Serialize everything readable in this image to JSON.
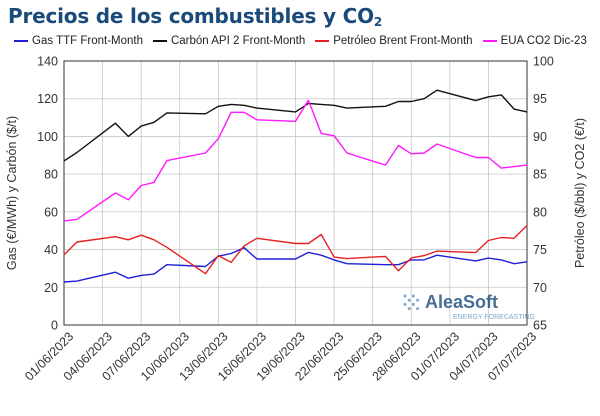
{
  "title": {
    "main": "Precios de los combustibles y CO",
    "sub": "2"
  },
  "chart_data": {
    "type": "line",
    "x_dates": [
      "2023-06-01",
      "2023-06-02",
      "2023-06-05",
      "2023-06-06",
      "2023-06-07",
      "2023-06-08",
      "2023-06-09",
      "2023-06-12",
      "2023-06-13",
      "2023-06-14",
      "2023-06-15",
      "2023-06-16",
      "2023-06-19",
      "2023-06-20",
      "2023-06-21",
      "2023-06-22",
      "2023-06-23",
      "2023-06-26",
      "2023-06-27",
      "2023-06-28",
      "2023-06-29",
      "2023-06-30",
      "2023-07-03",
      "2023-07-04",
      "2023-07-05",
      "2023-07-06",
      "2023-07-07"
    ],
    "x_tick_labels": [
      "01/06/2023",
      "04/06/2023",
      "07/06/2023",
      "10/06/2023",
      "13/06/2023",
      "16/06/2023",
      "19/06/2023",
      "22/06/2023",
      "25/06/2023",
      "28/06/2023",
      "01/07/2023",
      "04/07/2023",
      "07/07/2023"
    ],
    "x_tick_dates": [
      "2023-06-01",
      "2023-06-04",
      "2023-06-07",
      "2023-06-10",
      "2023-06-13",
      "2023-06-16",
      "2023-06-19",
      "2023-06-22",
      "2023-06-25",
      "2023-06-28",
      "2023-07-01",
      "2023-07-04",
      "2023-07-07"
    ],
    "y_left": {
      "label": "Gas (€/MWh) y Carbón ($/t)",
      "range": [
        0,
        140
      ],
      "ticks": [
        0,
        20,
        40,
        60,
        80,
        100,
        120,
        140
      ]
    },
    "y_right": {
      "label": "Petróleo ($/bbl) y CO2 (€/t)",
      "range": [
        65,
        100
      ],
      "ticks": [
        65,
        70,
        75,
        80,
        85,
        90,
        95,
        100
      ]
    },
    "grid": true,
    "legend_position": "top",
    "series": [
      {
        "name": "Gas TTF Front-Month",
        "axis": "left",
        "color": "#1f1fd6",
        "values": [
          22.8,
          23.3,
          28.0,
          24.8,
          26.3,
          27.0,
          32.0,
          31.0,
          36.5,
          37.9,
          41.0,
          35.0,
          35.0,
          38.5,
          37.0,
          34.5,
          32.5,
          32.0,
          32.0,
          34.5,
          34.5,
          37.0,
          34.0,
          35.5,
          34.5,
          32.5,
          33.5
        ]
      },
      {
        "name": "Carbón API 2 Front-Month",
        "axis": "left",
        "color": "#111111",
        "values": [
          87.0,
          91.5,
          107.0,
          100.0,
          105.5,
          107.5,
          112.5,
          112.0,
          116.0,
          117.0,
          116.5,
          115.0,
          113.0,
          117.5,
          117.0,
          116.5,
          115.0,
          116.0,
          118.5,
          118.5,
          120.0,
          124.5,
          119.0,
          121.0,
          122.0,
          114.5,
          113.0
        ]
      },
      {
        "name": "Petróleo Brent Front-Month",
        "axis": "right",
        "color": "#e82020",
        "values": [
          74.3,
          76.0,
          76.7,
          76.3,
          76.9,
          76.3,
          75.3,
          71.8,
          74.2,
          73.3,
          75.5,
          76.5,
          75.8,
          75.8,
          77.0,
          74.0,
          73.8,
          74.1,
          72.2,
          73.9,
          74.2,
          74.8,
          74.6,
          76.2,
          76.6,
          76.5,
          78.2
        ]
      },
      {
        "name": "EUA CO2 Dic-23",
        "axis": "right",
        "color": "#ff19ff",
        "values": [
          78.8,
          79.0,
          82.5,
          81.6,
          83.5,
          83.9,
          86.8,
          87.8,
          89.7,
          93.2,
          93.2,
          92.2,
          92.0,
          94.8,
          90.4,
          90.1,
          87.8,
          86.2,
          88.8,
          87.7,
          87.8,
          89.0,
          87.2,
          87.2,
          85.8,
          86.0,
          86.2
        ]
      }
    ]
  },
  "watermark": {
    "brand": "AleaSoft",
    "tagline": "ENERGY FORECASTING",
    "colors": {
      "dark": "#1a4a7a",
      "light": "#7fa8cf"
    }
  }
}
